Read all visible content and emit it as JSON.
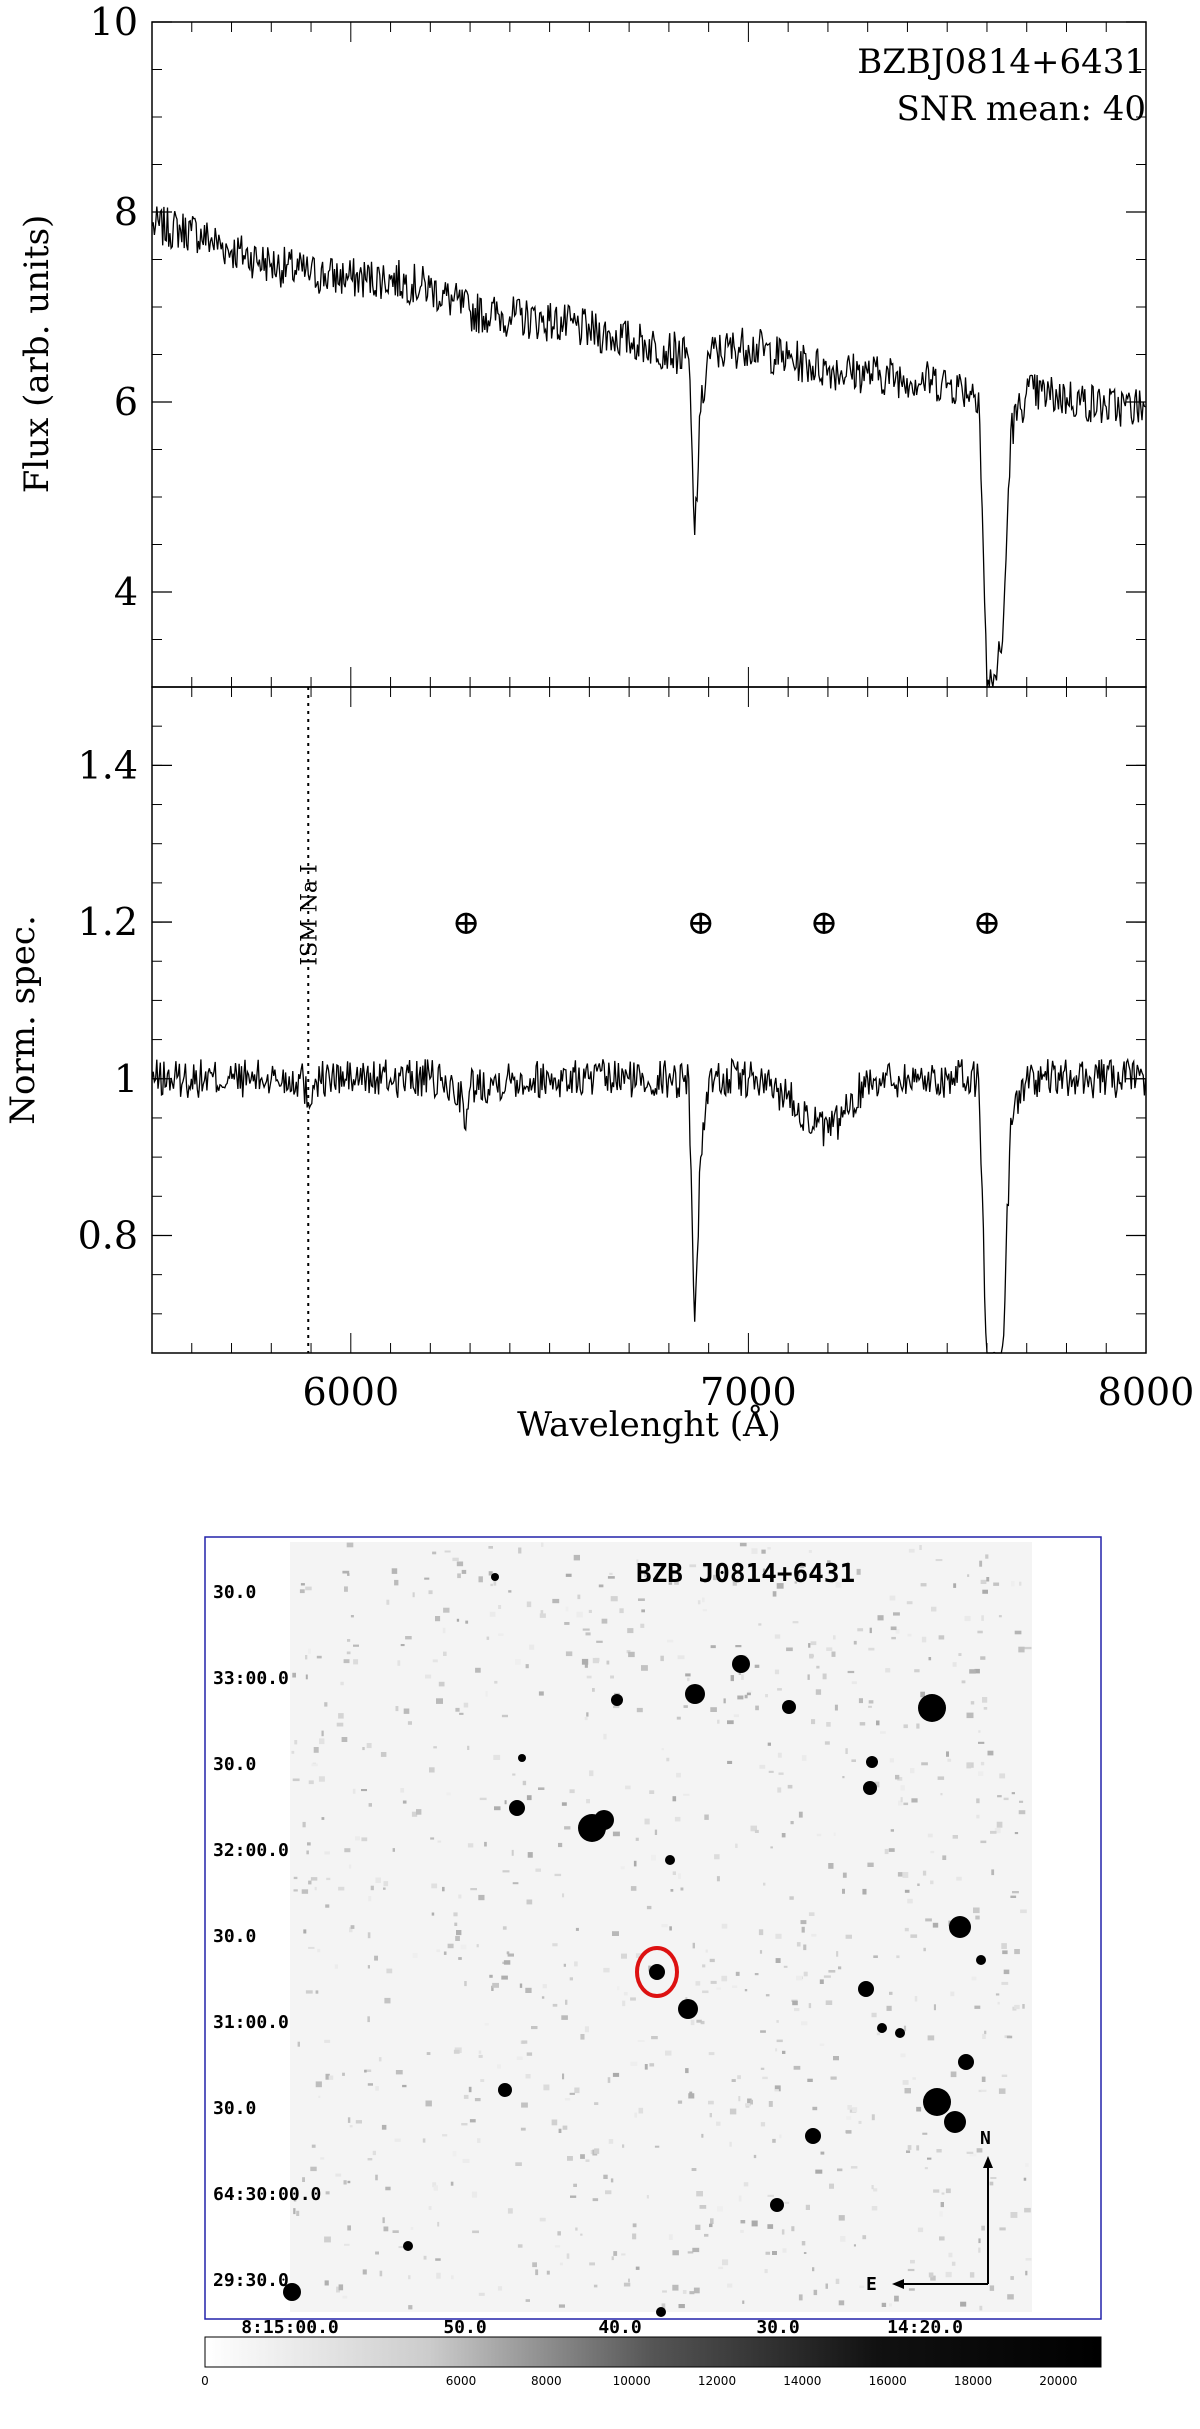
{
  "chart_data": [
    {
      "type": "line",
      "panel": "top",
      "xlabel": "",
      "ylabel": "Flux (arb. units)",
      "xlim": [
        5500,
        8000
      ],
      "ylim": [
        3,
        10
      ],
      "y_ticks": [
        "4",
        "6",
        "8",
        "10"
      ],
      "annotations": [
        "BZBJ0814+6431",
        "SNR mean: 40"
      ],
      "series": [
        {
          "x": [
            5500,
            5600,
            5700,
            5800,
            5900,
            6000,
            6100,
            6200,
            6300,
            6400,
            6500,
            6600,
            6700,
            6800,
            6850,
            6865,
            6880,
            6900,
            7000,
            7100,
            7200,
            7300,
            7400,
            7500,
            7580,
            7600,
            7620,
            7640,
            7660,
            7700,
            7800,
            7900,
            8000
          ],
          "y": [
            7.85,
            7.8,
            7.6,
            7.45,
            7.35,
            7.3,
            7.3,
            7.2,
            6.95,
            6.9,
            6.85,
            6.75,
            6.65,
            6.55,
            6.45,
            4.6,
            5.9,
            6.5,
            6.6,
            6.45,
            6.35,
            6.3,
            6.25,
            6.2,
            6.1,
            3.0,
            3.1,
            3.5,
            5.7,
            6.1,
            6.05,
            5.95,
            5.95
          ]
        }
      ]
    },
    {
      "type": "line",
      "panel": "bottom",
      "xlabel": "Wavelenght (Å)",
      "ylabel": "Norm. spec.",
      "xlim": [
        5500,
        8000
      ],
      "ylim": [
        0.65,
        1.5
      ],
      "x_ticks": [
        "6000",
        "7000",
        "8000"
      ],
      "y_ticks": [
        "0.8",
        "1",
        "1.2",
        "1.4"
      ],
      "annotations": {
        "ism_label": "ISM Na I",
        "ism_wavelength": 5893,
        "telluric_symbol": "⊕",
        "telluric_positions": [
          6290,
          6880,
          7190,
          7600
        ],
        "telluric_level": 1.2
      },
      "series": [
        {
          "x": [
            5500,
            5600,
            5700,
            5800,
            5880,
            5893,
            5910,
            6000,
            6100,
            6200,
            6280,
            6290,
            6300,
            6400,
            6500,
            6600,
            6700,
            6800,
            6850,
            6865,
            6880,
            6900,
            7000,
            7100,
            7150,
            7200,
            7250,
            7300,
            7400,
            7500,
            7580,
            7600,
            7620,
            7640,
            7660,
            7700,
            7800,
            7900,
            8000
          ],
          "y": [
            1.0,
            1.0,
            1.0,
            1.0,
            1.0,
            0.97,
            1.0,
            1.0,
            1.0,
            1.0,
            0.98,
            0.93,
            0.99,
            1.0,
            1.0,
            1.0,
            1.0,
            1.0,
            1.0,
            0.69,
            0.9,
            1.0,
            1.0,
            0.98,
            0.95,
            0.93,
            0.96,
            1.0,
            1.0,
            1.0,
            1.0,
            0.62,
            0.63,
            0.66,
            0.95,
            1.0,
            1.0,
            1.0,
            1.0
          ]
        }
      ]
    },
    {
      "type": "heatmap",
      "title": "BZB J0814+6431",
      "ra_ticks": [
        "8:15:00.0",
        "50.0",
        "40.0",
        "30.0",
        "14:20.0"
      ],
      "dec_ticks": [
        "30.0",
        "33:00.0",
        "30.0",
        "32:00.0",
        "30.0",
        "31:00.0",
        "30.0",
        "64:30:00.0",
        "29:30.0"
      ],
      "compass": {
        "north": "N",
        "east": "E"
      },
      "colorbar_ticks": [
        "0",
        "6000",
        "8000",
        "10000",
        "12000",
        "14000",
        "16000",
        "18000",
        "20000"
      ],
      "colorbar_range": [
        0,
        21000
      ],
      "circle_color": "#dd1111",
      "frame_color": "#2222aa"
    }
  ]
}
